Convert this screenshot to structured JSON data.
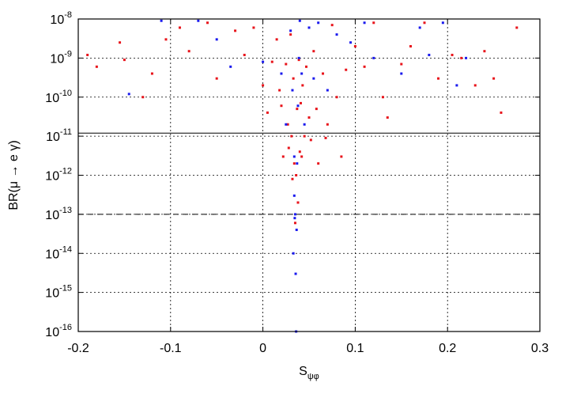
{
  "chart_data": {
    "type": "scatter",
    "title": "",
    "xlabel": {
      "main": "S",
      "sub": "ψφ"
    },
    "ylabel": "BR(μ → e γ)",
    "xlim": [
      -0.2,
      0.3
    ],
    "ylim_log10": [
      -16,
      -8
    ],
    "y_scale": "log",
    "grid": true,
    "x_ticks": [
      "-0.2",
      "-0.1",
      "0",
      "0.1",
      "0.2",
      "0.3"
    ],
    "y_ticks": [
      {
        "exp": -8,
        "label_base": "10",
        "label_exp": "-8"
      },
      {
        "exp": -9,
        "label_base": "10",
        "label_exp": "-9"
      },
      {
        "exp": -10,
        "label_base": "10",
        "label_exp": "-10"
      },
      {
        "exp": -11,
        "label_base": "10",
        "label_exp": "-11"
      },
      {
        "exp": -12,
        "label_base": "10",
        "label_exp": "-12"
      },
      {
        "exp": -13,
        "label_base": "10",
        "label_exp": "-13"
      },
      {
        "exp": -14,
        "label_base": "10",
        "label_exp": "-14"
      },
      {
        "exp": -15,
        "label_base": "10",
        "label_exp": "-15"
      },
      {
        "exp": -16,
        "label_base": "10",
        "label_exp": "-16"
      }
    ],
    "reference_lines": [
      {
        "y": 1.2e-11,
        "style": "solid"
      },
      {
        "y": 1e-13,
        "style": "dashed"
      }
    ],
    "series": [
      {
        "color": "#e8141b",
        "points": [
          [
            -0.19,
            1.2e-09
          ],
          [
            -0.18,
            6e-10
          ],
          [
            -0.155,
            2.5e-09
          ],
          [
            -0.15,
            9e-10
          ],
          [
            -0.13,
            1e-10
          ],
          [
            -0.12,
            4e-10
          ],
          [
            -0.105,
            3e-09
          ],
          [
            -0.09,
            6e-09
          ],
          [
            -0.08,
            1.5e-09
          ],
          [
            -0.06,
            8e-09
          ],
          [
            -0.05,
            3e-10
          ],
          [
            -0.03,
            5e-09
          ],
          [
            -0.02,
            1.2e-09
          ],
          [
            -0.01,
            6e-09
          ],
          [
            0.0,
            2e-10
          ],
          [
            0.005,
            4e-11
          ],
          [
            0.01,
            8e-10
          ],
          [
            0.015,
            3e-09
          ],
          [
            0.018,
            1.5e-10
          ],
          [
            0.02,
            6e-11
          ],
          [
            0.022,
            3e-12
          ],
          [
            0.025,
            7e-10
          ],
          [
            0.027,
            2e-11
          ],
          [
            0.028,
            5e-12
          ],
          [
            0.03,
            4e-09
          ],
          [
            0.031,
            1e-11
          ],
          [
            0.032,
            8e-13
          ],
          [
            0.033,
            3e-10
          ],
          [
            0.034,
            2e-12
          ],
          [
            0.035,
            6e-14
          ],
          [
            0.036,
            1e-12
          ],
          [
            0.037,
            5e-11
          ],
          [
            0.038,
            2e-13
          ],
          [
            0.039,
            9e-10
          ],
          [
            0.04,
            4e-12
          ],
          [
            0.041,
            7e-11
          ],
          [
            0.042,
            3e-12
          ],
          [
            0.043,
            2e-10
          ],
          [
            0.045,
            1e-11
          ],
          [
            0.047,
            6e-10
          ],
          [
            0.05,
            3e-11
          ],
          [
            0.052,
            8e-12
          ],
          [
            0.055,
            1.5e-09
          ],
          [
            0.058,
            5e-11
          ],
          [
            0.06,
            2e-12
          ],
          [
            0.065,
            4e-10
          ],
          [
            0.068,
            9e-12
          ],
          [
            0.07,
            2e-11
          ],
          [
            0.075,
            7e-09
          ],
          [
            0.08,
            1e-10
          ],
          [
            0.085,
            3e-12
          ],
          [
            0.09,
            5e-10
          ],
          [
            0.1,
            2e-09
          ],
          [
            0.11,
            6e-10
          ],
          [
            0.12,
            8e-09
          ],
          [
            0.13,
            1e-10
          ],
          [
            0.135,
            3e-11
          ],
          [
            0.15,
            7e-10
          ],
          [
            0.16,
            2e-09
          ],
          [
            0.175,
            8e-09
          ],
          [
            0.19,
            3e-10
          ],
          [
            0.205,
            1.2e-09
          ],
          [
            0.215,
            1e-09
          ],
          [
            0.23,
            2e-10
          ],
          [
            0.24,
            1.5e-09
          ],
          [
            0.25,
            3e-10
          ],
          [
            0.258,
            4e-11
          ],
          [
            0.275,
            6e-09
          ]
        ]
      },
      {
        "color": "#1a1aee",
        "points": [
          [
            -0.145,
            1.2e-10
          ],
          [
            -0.11,
            9e-09
          ],
          [
            -0.07,
            9e-09
          ],
          [
            -0.05,
            3e-09
          ],
          [
            0.0,
            8e-10
          ],
          [
            0.02,
            4e-10
          ],
          [
            0.025,
            2e-11
          ],
          [
            0.03,
            5e-09
          ],
          [
            0.032,
            1.5e-10
          ],
          [
            0.034,
            3e-12
          ],
          [
            0.0345,
            8e-14
          ],
          [
            0.035,
            1e-13
          ],
          [
            0.0355,
            3e-15
          ],
          [
            0.036,
            1e-16
          ],
          [
            0.0365,
            4e-14
          ],
          [
            0.037,
            2e-12
          ],
          [
            0.038,
            6e-11
          ],
          [
            0.039,
            1e-09
          ],
          [
            0.04,
            9e-09
          ],
          [
            0.042,
            4e-10
          ],
          [
            0.045,
            2e-11
          ],
          [
            0.05,
            6e-09
          ],
          [
            0.055,
            3e-10
          ],
          [
            0.06,
            8e-09
          ],
          [
            0.07,
            1.5e-10
          ],
          [
            0.08,
            4e-09
          ],
          [
            0.095,
            2.5e-09
          ],
          [
            0.11,
            8e-09
          ],
          [
            0.12,
            1e-09
          ],
          [
            0.15,
            4e-10
          ],
          [
            0.17,
            6e-09
          ],
          [
            0.18,
            1.2e-09
          ],
          [
            0.195,
            8e-09
          ],
          [
            0.21,
            2e-10
          ],
          [
            0.22,
            1e-09
          ],
          [
            -0.035,
            6e-10
          ],
          [
            0.033,
            1e-14
          ],
          [
            0.034,
            3e-13
          ]
        ]
      }
    ]
  }
}
